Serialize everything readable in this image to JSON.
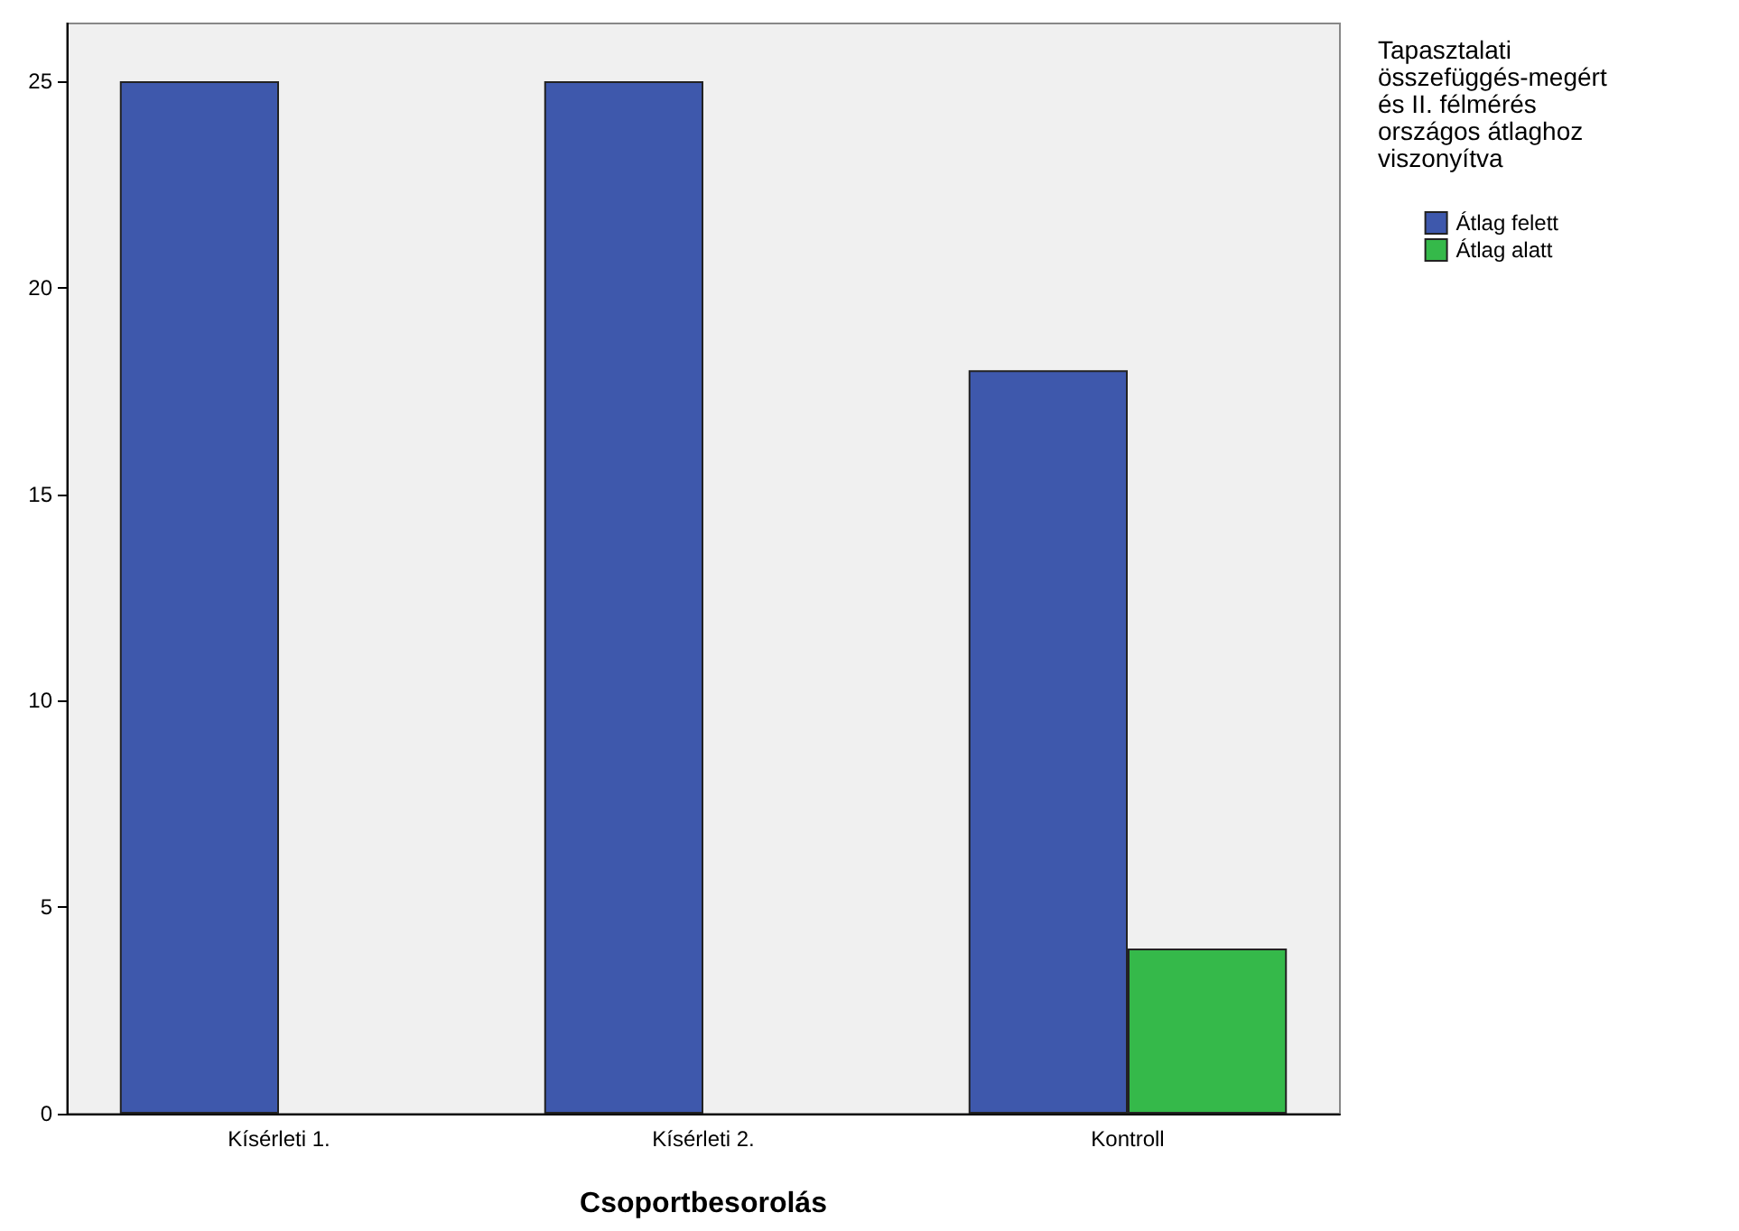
{
  "chart_data": {
    "type": "bar",
    "xlabel": "Csoportbesorolás",
    "legend_title": "Tapasztalati összefüggés-megértés II. félmérés országos átlaghoz viszonyítva",
    "categories": [
      "Kísérleti 1.",
      "Kísérleti 2.",
      "Kontroll"
    ],
    "series": [
      {
        "name": "Átlag felett",
        "color": "#3e58ac",
        "values": [
          25,
          25,
          18
        ]
      },
      {
        "name": "Átlag alatt",
        "color": "#35b94a",
        "values": [
          null,
          null,
          4
        ]
      }
    ],
    "ylim": [
      0,
      26.4
    ],
    "yticks": [
      0,
      5,
      10,
      15,
      20,
      25
    ],
    "grid": false,
    "legend": "top right"
  }
}
